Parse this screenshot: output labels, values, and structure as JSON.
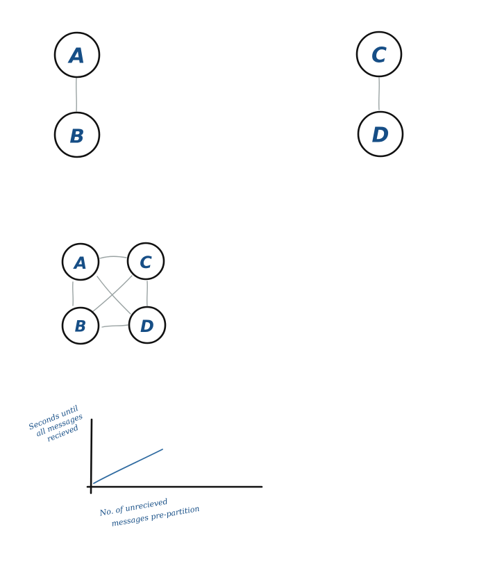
{
  "colors": {
    "ink": "#164e86",
    "outline": "#111111",
    "edge": "#9aa3a3",
    "series": "#2e6aa0"
  },
  "diagrams": {
    "pair_ab": {
      "nodes": [
        {
          "id": "A",
          "label": "A"
        },
        {
          "id": "B",
          "label": "B"
        }
      ],
      "edges": [
        [
          "A",
          "B"
        ]
      ]
    },
    "pair_cd": {
      "nodes": [
        {
          "id": "C",
          "label": "C"
        },
        {
          "id": "D",
          "label": "D"
        }
      ],
      "edges": [
        [
          "C",
          "D"
        ]
      ]
    },
    "mesh": {
      "nodes": [
        {
          "id": "A",
          "label": "A"
        },
        {
          "id": "C",
          "label": "C"
        },
        {
          "id": "B",
          "label": "B"
        },
        {
          "id": "D",
          "label": "D"
        }
      ],
      "edges": [
        [
          "A",
          "C"
        ],
        [
          "A",
          "B"
        ],
        [
          "C",
          "D"
        ],
        [
          "B",
          "D"
        ],
        [
          "A",
          "D"
        ],
        [
          "C",
          "B"
        ]
      ]
    }
  },
  "sketch_graph": {
    "ylabel_lines": [
      "Seconds until",
      "all messages",
      "recieved"
    ],
    "xlabel_lines": [
      "No. of unrecieved",
      "messages pre-partition"
    ]
  }
}
